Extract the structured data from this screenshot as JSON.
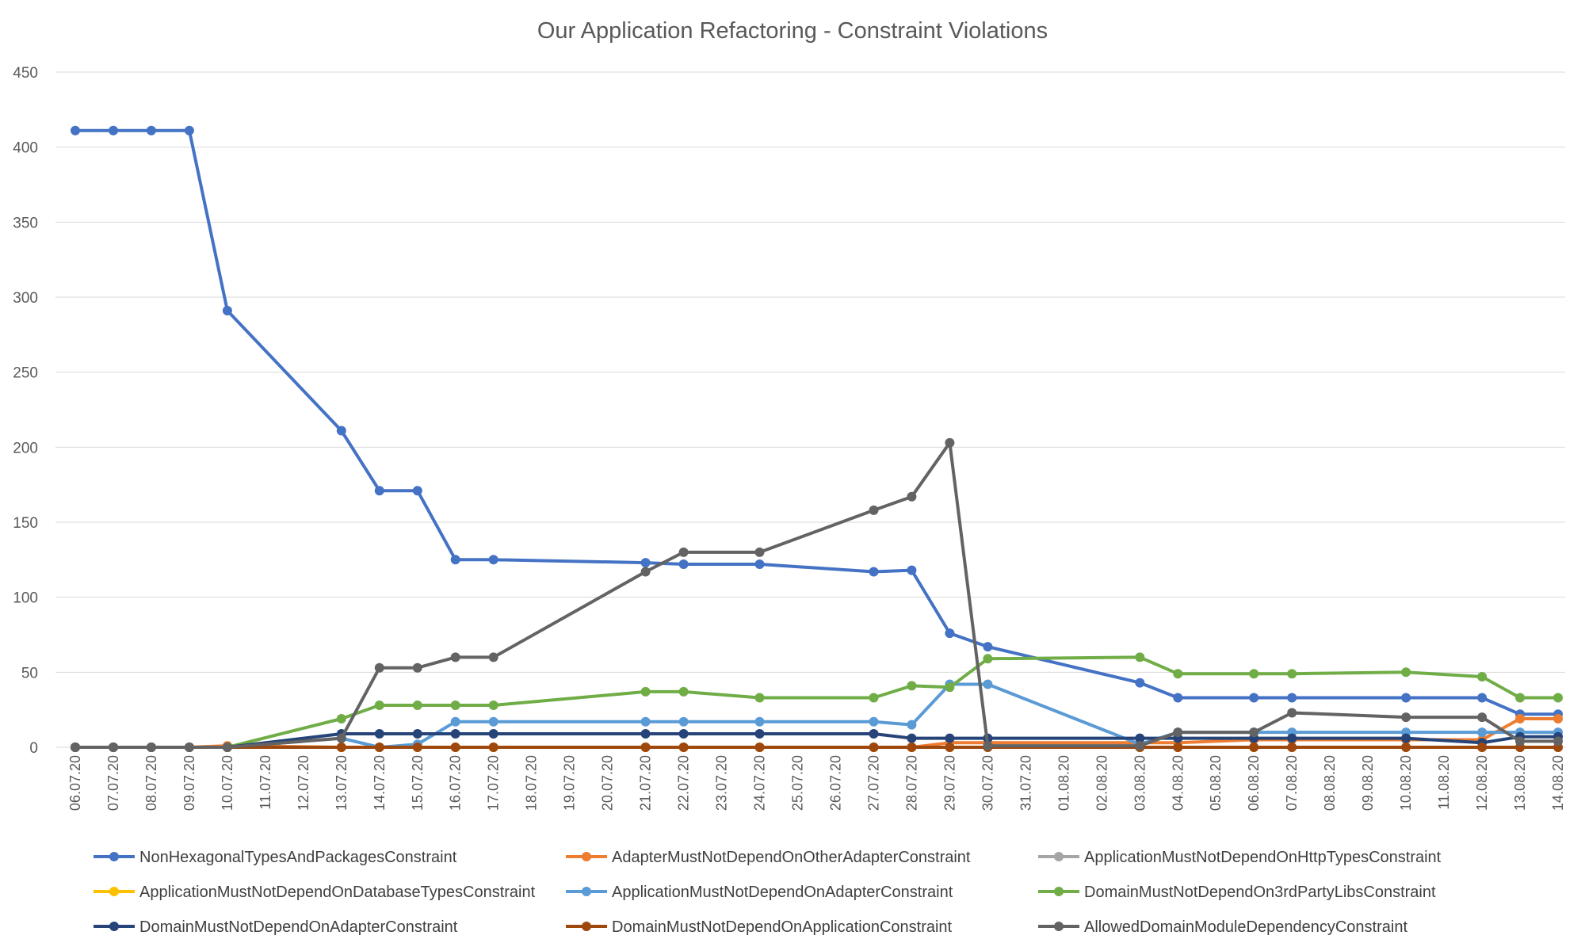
{
  "chart_data": {
    "type": "line",
    "title": "Our Application Refactoring - Constraint Violations",
    "xlabel": "",
    "ylabel": "",
    "ylim": [
      0,
      450
    ],
    "yticks": [
      "0",
      "50",
      "100",
      "150",
      "200",
      "250",
      "300",
      "350",
      "400",
      "450"
    ],
    "grid": true,
    "legend_position": "bottom",
    "categories": [
      "06.07.20",
      "07.07.20",
      "08.07.20",
      "09.07.20",
      "10.07.20",
      "11.07.20",
      "12.07.20",
      "13.07.20",
      "14.07.20",
      "15.07.20",
      "16.07.20",
      "17.07.20",
      "18.07.20",
      "19.07.20",
      "20.07.20",
      "21.07.20",
      "22.07.20",
      "23.07.20",
      "24.07.20",
      "25.07.20",
      "26.07.20",
      "27.07.20",
      "28.07.20",
      "29.07.20",
      "30.07.20",
      "31.07.20",
      "01.08.20",
      "02.08.20",
      "03.08.20",
      "04.08.20",
      "05.08.20",
      "06.08.20",
      "07.08.20",
      "08.08.20",
      "09.08.20",
      "10.08.20",
      "11.08.20",
      "12.08.20",
      "13.08.20",
      "14.08.20"
    ],
    "series": [
      {
        "name": "NonHexagonalTypesAndPackagesConstraint",
        "color": "#4472C4",
        "values": [
          411,
          411,
          411,
          411,
          291,
          null,
          null,
          211,
          171,
          171,
          125,
          125,
          null,
          null,
          null,
          123,
          122,
          null,
          122,
          null,
          null,
          117,
          118,
          76,
          67,
          null,
          null,
          null,
          43,
          33,
          null,
          33,
          33,
          null,
          null,
          33,
          null,
          33,
          22,
          22
        ]
      },
      {
        "name": "AdapterMustNotDependOnOtherAdapterConstraint",
        "color": "#ED7D31",
        "values": [
          0,
          0,
          0,
          0,
          1,
          null,
          null,
          0,
          0,
          0,
          0,
          0,
          null,
          null,
          null,
          0,
          0,
          null,
          0,
          null,
          null,
          0,
          0,
          3,
          3,
          null,
          null,
          null,
          3,
          3,
          null,
          5,
          5,
          null,
          null,
          5,
          null,
          5,
          19,
          19
        ]
      },
      {
        "name": "ApplicationMustNotDependOnHttpTypesConstraint",
        "color": "#A5A5A5",
        "values": [
          0,
          0,
          0,
          0,
          0,
          null,
          null,
          0,
          0,
          0,
          0,
          0,
          null,
          null,
          null,
          0,
          0,
          null,
          0,
          null,
          null,
          0,
          0,
          0,
          0,
          null,
          null,
          null,
          0,
          0,
          null,
          0,
          0,
          null,
          null,
          0,
          null,
          0,
          0,
          0
        ]
      },
      {
        "name": "ApplicationMustNotDependOnDatabaseTypesConstraint",
        "color": "#FFC000",
        "values": [
          0,
          0,
          0,
          0,
          0,
          null,
          null,
          0,
          0,
          0,
          0,
          0,
          null,
          null,
          null,
          0,
          0,
          null,
          0,
          null,
          null,
          0,
          0,
          0,
          0,
          null,
          null,
          null,
          0,
          0,
          null,
          0,
          0,
          null,
          null,
          0,
          null,
          0,
          0,
          0
        ]
      },
      {
        "name": "ApplicationMustNotDependOnAdapterConstraint",
        "color": "#5B9BD5",
        "values": [
          0,
          0,
          0,
          0,
          0,
          null,
          null,
          6,
          0,
          2,
          17,
          17,
          null,
          null,
          null,
          17,
          17,
          null,
          17,
          null,
          null,
          17,
          15,
          42,
          42,
          null,
          null,
          null,
          2,
          10,
          null,
          10,
          10,
          null,
          null,
          10,
          null,
          10,
          10,
          10
        ]
      },
      {
        "name": "DomainMustNotDependOn3rdPartyLibsConstraint",
        "color": "#70AD47",
        "values": [
          0,
          0,
          0,
          0,
          0,
          null,
          null,
          19,
          28,
          28,
          28,
          28,
          null,
          null,
          null,
          37,
          37,
          null,
          33,
          null,
          null,
          33,
          41,
          40,
          59,
          null,
          null,
          null,
          60,
          49,
          null,
          49,
          49,
          null,
          null,
          50,
          null,
          47,
          33,
          33
        ]
      },
      {
        "name": "DomainMustNotDependOnAdapterConstraint",
        "color": "#264478",
        "values": [
          0,
          0,
          0,
          0,
          0,
          null,
          null,
          9,
          9,
          9,
          9,
          9,
          null,
          null,
          null,
          9,
          9,
          null,
          9,
          null,
          null,
          9,
          6,
          6,
          6,
          null,
          null,
          null,
          6,
          6,
          null,
          6,
          6,
          null,
          null,
          6,
          null,
          3,
          7,
          7
        ]
      },
      {
        "name": "DomainMustNotDependOnApplicationConstraint",
        "color": "#9E480E",
        "values": [
          0,
          0,
          0,
          0,
          0,
          null,
          null,
          0,
          0,
          0,
          0,
          0,
          null,
          null,
          null,
          0,
          0,
          null,
          0,
          null,
          null,
          0,
          0,
          0,
          0,
          null,
          null,
          null,
          0,
          0,
          null,
          0,
          0,
          null,
          null,
          0,
          null,
          0,
          0,
          0
        ]
      },
      {
        "name": "AllowedDomainModuleDependencyConstraint",
        "color": "#636363",
        "values": [
          0,
          0,
          0,
          0,
          0,
          null,
          null,
          6,
          53,
          53,
          60,
          60,
          null,
          null,
          null,
          117,
          130,
          null,
          130,
          null,
          null,
          158,
          167,
          203,
          1,
          null,
          null,
          null,
          1,
          10,
          null,
          10,
          23,
          null,
          null,
          20,
          null,
          20,
          4,
          4
        ]
      }
    ]
  }
}
